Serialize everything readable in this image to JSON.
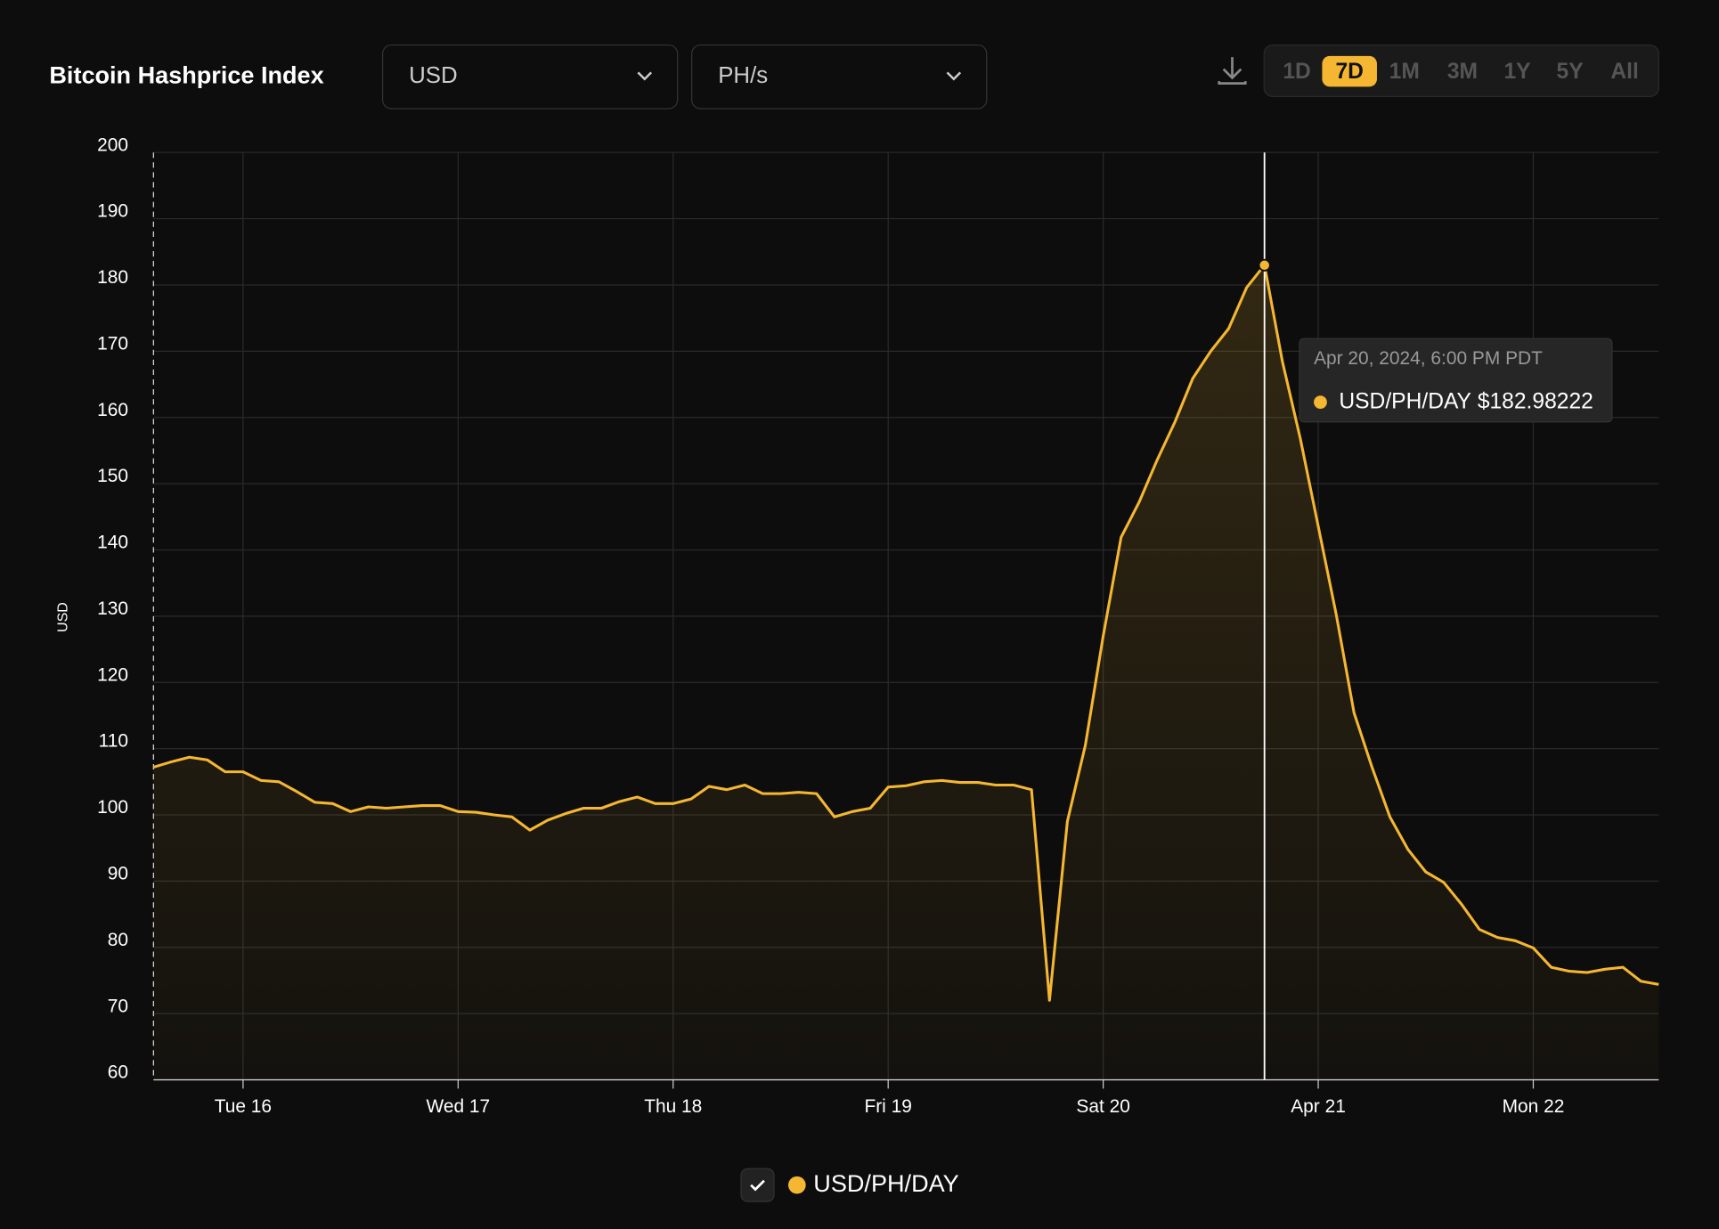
{
  "header": {
    "title": "Bitcoin Hashprice Index",
    "currency": "USD",
    "unit": "PH/s",
    "ranges": [
      "1D",
      "7D",
      "1M",
      "3M",
      "1Y",
      "5Y",
      "All"
    ],
    "active_range": "7D"
  },
  "chart_data": {
    "type": "area",
    "ylabel": "USD",
    "categories": [
      null,
      null,
      null,
      null,
      null,
      null,
      null,
      null,
      null,
      null,
      null,
      null,
      null,
      null,
      null,
      null,
      null,
      null,
      null,
      null,
      null,
      null,
      null,
      null,
      null,
      null,
      null,
      null,
      null,
      null,
      null,
      null,
      null,
      null,
      null,
      null,
      null,
      null,
      null,
      null,
      null,
      null,
      null,
      null,
      null,
      null,
      null,
      null,
      null,
      null,
      null,
      null,
      null,
      null,
      null,
      null,
      null,
      null,
      null,
      null,
      null,
      null,
      null,
      null,
      null,
      null,
      null,
      null,
      null,
      null,
      null,
      null,
      null,
      null,
      null,
      null,
      null,
      null,
      null,
      null,
      null,
      null,
      null,
      null,
      null
    ],
    "series": [
      {
        "name": "USD/PH/DAY",
        "color": "#f5b731",
        "values": [
          107.2,
          108,
          108.7,
          108.3,
          106.5,
          106.5,
          105.2,
          105,
          103.5,
          101.9,
          101.7,
          100.5,
          101.2,
          101,
          101.2,
          101.4,
          101.4,
          100.5,
          100.4,
          100,
          99.7,
          97.7,
          99.2,
          100.2,
          101,
          101,
          102,
          102.7,
          101.7,
          101.7,
          102.4,
          104.3,
          103.8,
          104.5,
          103.2,
          103.2,
          103.4,
          103.2,
          99.7,
          100.5,
          101,
          104.2,
          104.4,
          105,
          105.2,
          104.9,
          104.9,
          104.5,
          104.5,
          103.8,
          72,
          99,
          110.5,
          127,
          141.9,
          147.2,
          153.5,
          159.3,
          165.9,
          170,
          173.4,
          179.6,
          182.98222,
          168.4,
          156.8,
          143.6,
          130.3,
          115.4,
          107.2,
          99.7,
          94.8,
          91.4,
          89.8,
          86.5,
          82.7,
          81.5,
          81,
          79.9,
          77,
          76.4,
          76.2,
          76.7,
          77,
          74.9,
          74.4
        ]
      }
    ],
    "xlim": [
      0,
      84
    ],
    "xticks": [
      {
        "value": 5,
        "label": "Tue 16"
      },
      {
        "value": 17,
        "label": "Wed 17"
      },
      {
        "value": 29,
        "label": "Thu 18"
      },
      {
        "value": 41,
        "label": "Fri 19"
      },
      {
        "value": 53,
        "label": "Sat 20"
      },
      {
        "value": 65,
        "label": "Apr 21"
      },
      {
        "value": 77,
        "label": "Mon 22"
      }
    ],
    "ylim": [
      60,
      200
    ],
    "yticks": [
      60,
      70,
      80,
      90,
      100,
      110,
      120,
      130,
      140,
      150,
      160,
      170,
      180,
      190,
      200
    ],
    "grid": true,
    "tooltip": {
      "point": 62,
      "title": "Apr 20, 2024, 6:00 PM PDT",
      "value_label": "$182.98222"
    }
  }
}
